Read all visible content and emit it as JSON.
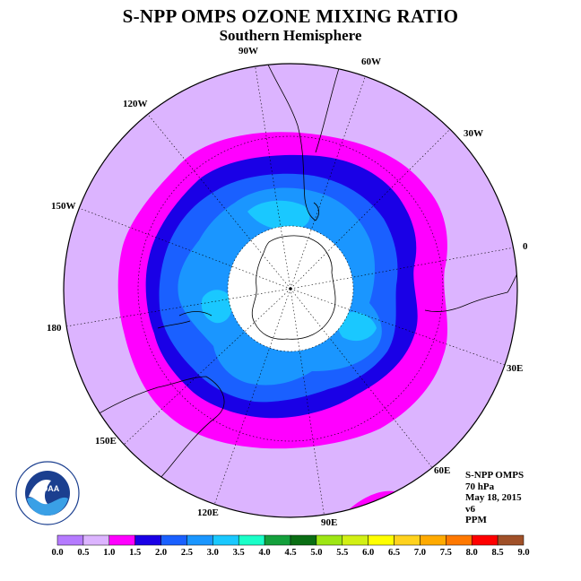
{
  "title": "S-NPP OMPS OZONE MIXING RATIO",
  "subtitle": "Southern Hemisphere",
  "map": {
    "projection": "south polar stereographic",
    "longitude_labels": [
      "90W",
      "60W",
      "30W",
      "0",
      "30E",
      "60E",
      "90E",
      "120E",
      "150E",
      "180",
      "150W",
      "120W"
    ],
    "no_data_region": "polar cap (white)"
  },
  "info": {
    "instrument": "S-NPP OMPS",
    "level": "70 hPa",
    "date": "May 18, 2015",
    "version": "v6",
    "units": "PPM"
  },
  "logo": {
    "name": "NOAA",
    "ring_text": "NATIONAL OCEANIC AND ATMOSPHERIC ADMINISTRATION · U.S. DEPARTMENT OF COMMERCE"
  },
  "colorbar": {
    "ticks": [
      "0.0",
      "0.5",
      "1.0",
      "1.5",
      "2.0",
      "2.5",
      "3.0",
      "3.5",
      "4.0",
      "4.5",
      "5.0",
      "5.5",
      "6.0",
      "6.5",
      "7.0",
      "7.5",
      "8.0",
      "8.5",
      "9.0"
    ],
    "colors": [
      "#b57bff",
      "#dcb4ff",
      "#ff00ff",
      "#1a00e6",
      "#1a60ff",
      "#1a96ff",
      "#1ac8ff",
      "#1affc8",
      "#14a03c",
      "#0a6e14",
      "#9ee614",
      "#d2f014",
      "#ffff00",
      "#ffd21e",
      "#ffaa00",
      "#ff7800",
      "#ff0000",
      "#a05028"
    ]
  }
}
